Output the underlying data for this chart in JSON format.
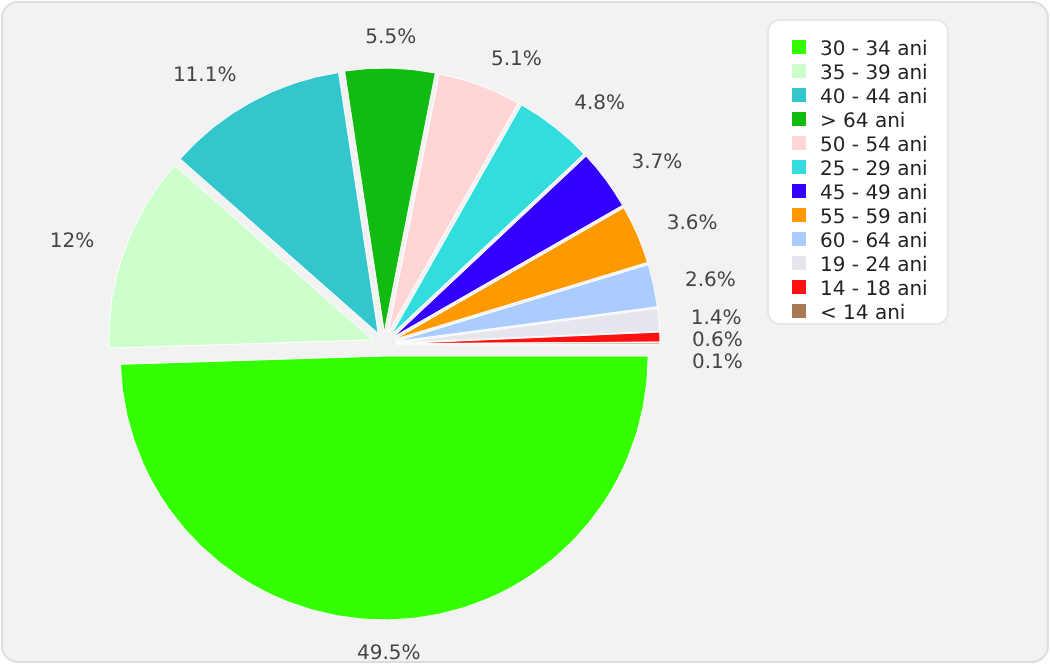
{
  "chart_data": {
    "type": "pie",
    "categories": [
      "30 - 34 ani",
      "35 - 39 ani",
      "40 - 44 ani",
      "> 64 ani",
      "50 - 54 ani",
      "25 - 29 ani",
      "45 - 49 ani",
      "55 - 59 ani",
      "60 - 64 ani",
      "19 - 24 ani",
      "14 - 18 ani",
      "< 14 ani"
    ],
    "values": [
      49.5,
      12,
      11.1,
      5.5,
      5.1,
      4.8,
      3.7,
      3.6,
      2.6,
      1.4,
      0.6,
      0.1
    ],
    "colors": [
      "#33ff00",
      "#ccffcc",
      "#33c6cc",
      "#11bb11",
      "#ffd5d5",
      "#33dddd",
      "#3300ff",
      "#ff9900",
      "#aaccff",
      "#e6e6ee",
      "#ff1111",
      "#aa7755"
    ],
    "value_labels": [
      "49.5%",
      "12%",
      "11.1%",
      "5.5%",
      "5.1%",
      "4.8%",
      "3.7%",
      "3.6%",
      "2.6%",
      "1.4%",
      "0.6%",
      "0.1%"
    ],
    "legend": "top right"
  }
}
